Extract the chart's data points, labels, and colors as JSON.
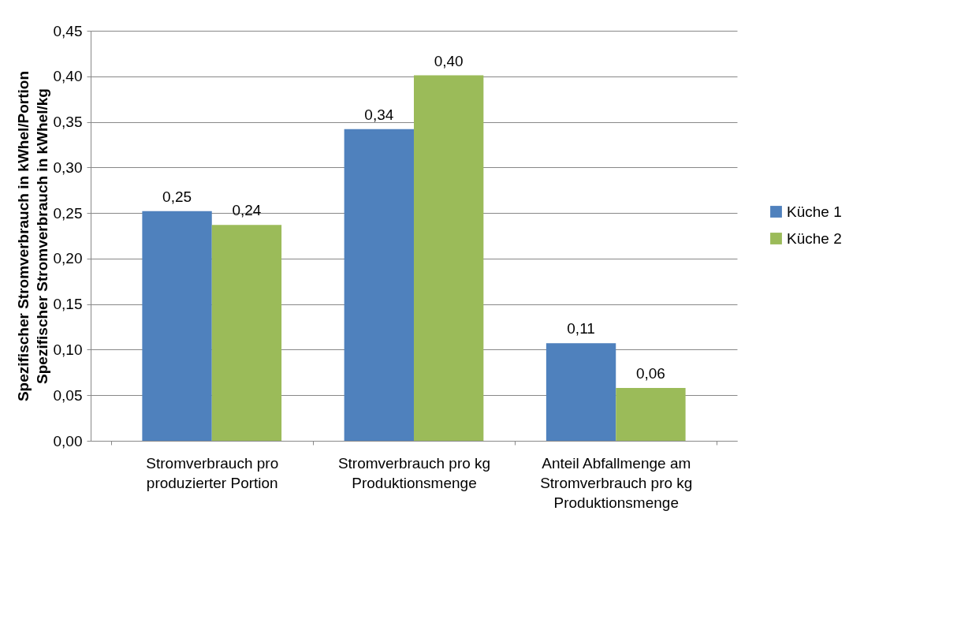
{
  "chart_data": {
    "type": "bar",
    "ylabel": "Spezifischer Stromverbrauch in kWhel/Portion\nSpezifischer Stromverbrauch in kWhel/kg",
    "categories": [
      "Stromverbrauch pro produzierter Portion",
      "Stromverbrauch pro kg Produktionsmenge",
      "Anteil Abfallmenge am Stromverbrauch pro kg Produktionsmenge"
    ],
    "series": [
      {
        "name": "Küche 1",
        "color": "#4f81bd",
        "values": [
          0.252,
          0.342,
          0.107
        ],
        "value_labels": [
          "0,25",
          "0,34",
          "0,11"
        ]
      },
      {
        "name": "Küche 2",
        "color": "#9bbb59",
        "values": [
          0.237,
          0.401,
          0.058
        ],
        "value_labels": [
          "0,24",
          "0,40",
          "0,06"
        ]
      }
    ],
    "ylim": [
      0,
      0.45
    ],
    "yticks": [
      {
        "value": 0,
        "label": "0,00"
      },
      {
        "value": 0.05,
        "label": "0,05"
      },
      {
        "value": 0.1,
        "label": "0,10"
      },
      {
        "value": 0.15,
        "label": "0,15"
      },
      {
        "value": 0.2,
        "label": "0,20"
      },
      {
        "value": 0.25,
        "label": "0,25"
      },
      {
        "value": 0.3,
        "label": "0,30"
      },
      {
        "value": 0.35,
        "label": "0,35"
      },
      {
        "value": 0.4,
        "label": "0,40"
      },
      {
        "value": 0.45,
        "label": "0,45"
      }
    ],
    "grid": "y",
    "legend": "right"
  }
}
